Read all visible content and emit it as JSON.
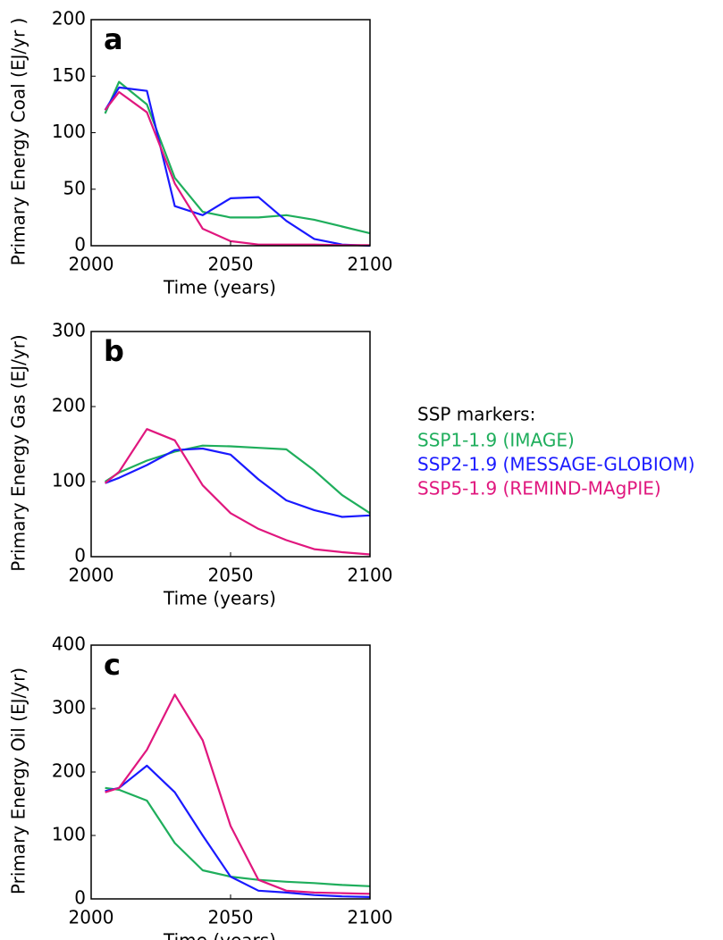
{
  "chart_data": [
    {
      "type": "line",
      "panel": "a",
      "ylabel": "Primary Energy Coal (EJ/yr )",
      "xlabel": "Time (years)",
      "x": [
        2005,
        2010,
        2020,
        2030,
        2040,
        2050,
        2060,
        2070,
        2080,
        2090,
        2100
      ],
      "xlim": [
        2000,
        2100
      ],
      "xticks": [
        2000,
        2050,
        2100
      ],
      "ylim": [
        0,
        200
      ],
      "yticks": [
        0,
        50,
        100,
        150,
        200
      ],
      "series": [
        {
          "color": "#1fae5c",
          "values": [
            117,
            145,
            125,
            60,
            30,
            25,
            25,
            27,
            23,
            17,
            11
          ]
        },
        {
          "color": "#1a1aff",
          "values": [
            120,
            140,
            137,
            35,
            27,
            42,
            43,
            22,
            6,
            1,
            0
          ]
        },
        {
          "color": "#e0177e",
          "values": [
            120,
            136,
            118,
            55,
            15,
            4,
            1,
            1,
            1,
            0.5,
            0.5
          ]
        }
      ]
    },
    {
      "type": "line",
      "panel": "b",
      "ylabel": "Primary Energy Gas (EJ/yr)",
      "xlabel": "Time (years)",
      "x": [
        2005,
        2010,
        2020,
        2030,
        2040,
        2050,
        2060,
        2070,
        2080,
        2090,
        2100
      ],
      "xlim": [
        2000,
        2100
      ],
      "xticks": [
        2000,
        2050,
        2100
      ],
      "ylim": [
        0,
        300
      ],
      "yticks": [
        0,
        100,
        200,
        300
      ],
      "series": [
        {
          "color": "#1fae5c",
          "values": [
            100,
            112,
            128,
            140,
            148,
            147,
            145,
            143,
            115,
            82,
            58
          ]
        },
        {
          "color": "#1a1aff",
          "values": [
            98,
            105,
            122,
            142,
            144,
            136,
            103,
            75,
            62,
            53,
            55
          ]
        },
        {
          "color": "#e0177e",
          "values": [
            98,
            113,
            170,
            155,
            95,
            58,
            37,
            22,
            10,
            6,
            3
          ]
        }
      ]
    },
    {
      "type": "line",
      "panel": "c",
      "ylabel": "Primary Energy Oil (EJ/yr)",
      "xlabel": "Time (years)",
      "x": [
        2005,
        2010,
        2020,
        2030,
        2040,
        2050,
        2060,
        2070,
        2080,
        2090,
        2100
      ],
      "xlim": [
        2000,
        2100
      ],
      "xticks": [
        2000,
        2050,
        2100
      ],
      "ylim": [
        0,
        400
      ],
      "yticks": [
        0,
        100,
        200,
        300,
        400
      ],
      "series": [
        {
          "color": "#1fae5c",
          "values": [
            175,
            172,
            155,
            88,
            45,
            35,
            30,
            27,
            25,
            22,
            20
          ]
        },
        {
          "color": "#1a1aff",
          "values": [
            170,
            175,
            210,
            168,
            100,
            35,
            13,
            10,
            6,
            4,
            3
          ]
        },
        {
          "color": "#e0177e",
          "values": [
            168,
            175,
            235,
            322,
            250,
            115,
            30,
            13,
            10,
            9,
            8
          ]
        }
      ]
    }
  ],
  "legend": {
    "title": "SSP markers:",
    "entries": [
      {
        "name": "SSP1-1.9 (IMAGE)",
        "color": "#1fae5c"
      },
      {
        "name": "SSP2-1.9 (MESSAGE-GLOBIOM)",
        "color": "#1a1aff"
      },
      {
        "name": "SSP5-1.9 (REMIND-MAgPIE)",
        "color": "#e0177e"
      }
    ]
  }
}
